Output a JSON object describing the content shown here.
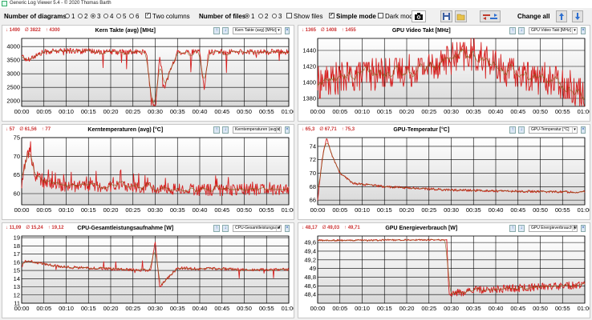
{
  "window": {
    "title": "Generic Log Viewer 5.4 - © 2020 Thomas Barth"
  },
  "toolbar": {
    "num_diagrams_label": "Number of diagrams",
    "diagram_options": [
      "1",
      "2",
      "3",
      "4",
      "5",
      "6"
    ],
    "diagram_selected": "3",
    "two_columns_label": "Two columns",
    "num_files_label": "Number of files",
    "file_options": [
      "1",
      "2",
      "3"
    ],
    "file_selected": "1",
    "show_files_label": "Show files",
    "simple_mode_label": "Simple mode",
    "dark_mode_label": "Dark mod",
    "change_all_label": "Change all"
  },
  "colors": {
    "series": "#d62020",
    "trend": "#7a5a10",
    "grid": "#000000",
    "plot_bg_top": "#ffffff",
    "plot_bg_bottom": "#d9d9d9"
  },
  "x_ticks": [
    "00:00",
    "00:05",
    "00:10",
    "00:15",
    "00:20",
    "00:25",
    "00:30",
    "00:35",
    "00:40",
    "00:45",
    "00:50",
    "00:55",
    "01:00"
  ],
  "panels": [
    {
      "title": "Kern Takte (avg) [MHz]",
      "min": "1490",
      "avg": "3822",
      "max": "4300",
      "selector": "Kern Takte (avg) [MHz]"
    },
    {
      "title": "GPU Video Takt [MHz]",
      "min": "1365",
      "avg": "1408",
      "max": "1455",
      "selector": "GPU Video Takt [MHz]"
    },
    {
      "title": "Kerntemperaturen (avg) [°C]",
      "min": "57",
      "avg": "61,56",
      "max": "77",
      "selector": "Kerntemperaturen (avg) ["
    },
    {
      "title": "GPU-Temperatur [°C]",
      "min": "65,3",
      "avg": "67,71",
      "max": "75,3",
      "selector": "GPU-Temperatur [°C]"
    },
    {
      "title": "CPU-Gesamtleistungsaufnahme [W]",
      "min": "11,09",
      "avg": "15,24",
      "max": "19,12",
      "selector": "CPU-Gesamtleistungsauf"
    },
    {
      "title": "GPU Energieverbrauch [W]",
      "min": "48,17",
      "avg": "49,03",
      "max": "49,71",
      "selector": "GPU Energieverbrauch [W"
    }
  ],
  "chart_data": [
    {
      "type": "line",
      "title": "Kern Takte (avg) [MHz]",
      "ylim": [
        1800,
        4300
      ],
      "yticks": [
        "2000",
        "2500",
        "3000",
        "3500",
        "4000"
      ],
      "xlim": [
        0,
        60
      ],
      "shape": "clock-spiky",
      "series": [
        {
          "x": [
            0,
            1,
            5,
            10,
            20,
            28,
            29,
            30,
            31,
            32,
            35,
            40,
            41,
            42,
            50,
            60
          ],
          "values": [
            3700,
            3500,
            3800,
            3850,
            3800,
            3800,
            2200,
            1600,
            3700,
            2500,
            3800,
            3800,
            2400,
            3800,
            3800,
            3800
          ]
        }
      ]
    },
    {
      "type": "line",
      "title": "GPU Video Takt [MHz]",
      "ylim": [
        1370,
        1455
      ],
      "yticks": [
        "1380",
        "1400",
        "1420",
        "1440"
      ],
      "xlim": [
        0,
        60
      ],
      "shape": "gpu-clock",
      "series": [
        {
          "x": [
            0,
            5,
            10,
            20,
            25,
            30,
            35,
            40,
            45,
            50,
            55,
            60
          ],
          "values": [
            1400,
            1405,
            1410,
            1415,
            1420,
            1430,
            1435,
            1420,
            1410,
            1405,
            1400,
            1385
          ]
        }
      ]
    },
    {
      "type": "line",
      "title": "Kerntemperaturen (avg) [°C]",
      "ylim": [
        57,
        75
      ],
      "yticks": [
        "60",
        "65",
        "70",
        "75"
      ],
      "xlim": [
        0,
        60
      ],
      "shape": "cpu-temp",
      "series": [
        {
          "x": [
            0,
            1,
            2,
            3,
            5,
            10,
            20,
            30,
            40,
            50,
            60
          ],
          "values": [
            62,
            70,
            71,
            65,
            63,
            62,
            62,
            61.5,
            61,
            61,
            61
          ]
        }
      ]
    },
    {
      "type": "line",
      "title": "GPU-Temperatur [°C]",
      "ylim": [
        65.3,
        75.3
      ],
      "yticks": [
        "66",
        "68",
        "70",
        "72",
        "74"
      ],
      "xlim": [
        0,
        60
      ],
      "shape": "gpu-temp",
      "series": [
        {
          "x": [
            0,
            1,
            2,
            3,
            5,
            8,
            15,
            30,
            45,
            60
          ],
          "values": [
            66,
            72,
            75.3,
            73,
            70,
            68.5,
            68,
            67.5,
            67.3,
            67.2
          ]
        }
      ]
    },
    {
      "type": "line",
      "title": "CPU-Gesamtleistungsaufnahme [W]",
      "ylim": [
        11,
        19.2
      ],
      "yticks": [
        "11",
        "12",
        "13",
        "14",
        "15",
        "16",
        "17",
        "18",
        "19"
      ],
      "xlim": [
        0,
        60
      ],
      "shape": "cpu-power",
      "series": [
        {
          "x": [
            0,
            1,
            5,
            10,
            20,
            29,
            30,
            31,
            35,
            40,
            45,
            50,
            60
          ],
          "values": [
            15.5,
            16.2,
            15.8,
            15.4,
            15.2,
            15,
            18.5,
            13,
            15.3,
            15.2,
            15.2,
            15.1,
            15.1
          ]
        }
      ]
    },
    {
      "type": "line",
      "title": "GPU Energieverbrauch [W]",
      "ylim": [
        48.2,
        49.75
      ],
      "yticks": [
        "48,4",
        "48,6",
        "48,8",
        "49",
        "49,2",
        "49,4",
        "49,6"
      ],
      "xlim": [
        0,
        60
      ],
      "shape": "gpu-power",
      "series": [
        {
          "x": [
            0,
            10,
            20,
            29,
            29.5,
            35,
            45,
            55,
            60
          ],
          "values": [
            49.65,
            49.65,
            49.66,
            49.66,
            48.4,
            48.5,
            48.55,
            48.6,
            48.62
          ]
        }
      ]
    }
  ]
}
